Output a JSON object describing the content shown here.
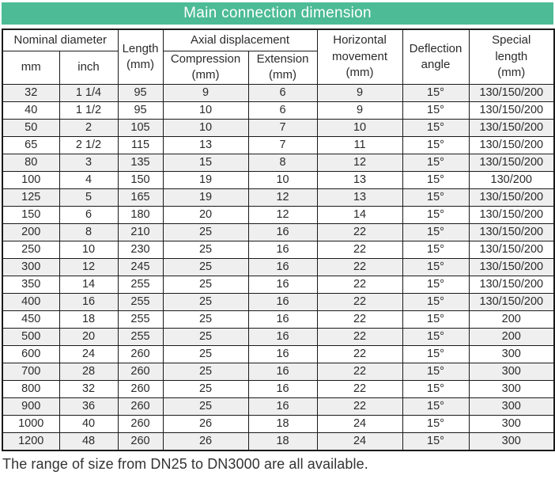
{
  "title": "Main connection dimension",
  "theme": {
    "title_bg_color": "#4cbb96",
    "title_text_color": "#ffffff",
    "row_alt_color": "#efefef",
    "border_color": "#1a1a1a"
  },
  "table": {
    "header": {
      "nominal_diameter": "Nominal diameter",
      "mm": "mm",
      "inch": "inch",
      "length": "Length\n(mm)",
      "axial_displacement": "Axial displacement",
      "compression": "Compression\n(mm)",
      "extension": "Extension\n(mm)",
      "horizontal_movement": "Horizontal\nmovement\n(mm)",
      "deflection_angle": "Deflection\nangle",
      "special_length": "Special\nlength\n(mm)"
    },
    "rows": [
      [
        "32",
        "1 1/4",
        "95",
        "9",
        "6",
        "9",
        "15°",
        "130/150/200"
      ],
      [
        "40",
        "1 1/2",
        "95",
        "10",
        "6",
        "9",
        "15°",
        "130/150/200"
      ],
      [
        "50",
        "2",
        "105",
        "10",
        "7",
        "10",
        "15°",
        "130/150/200"
      ],
      [
        "65",
        "2 1/2",
        "115",
        "13",
        "7",
        "11",
        "15°",
        "130/150/200"
      ],
      [
        "80",
        "3",
        "135",
        "15",
        "8",
        "12",
        "15°",
        "130/150/200"
      ],
      [
        "100",
        "4",
        "150",
        "19",
        "10",
        "13",
        "15°",
        "130/200"
      ],
      [
        "125",
        "5",
        "165",
        "19",
        "12",
        "13",
        "15°",
        "130/150/200"
      ],
      [
        "150",
        "6",
        "180",
        "20",
        "12",
        "14",
        "15°",
        "130/150/200"
      ],
      [
        "200",
        "8",
        "210",
        "25",
        "16",
        "22",
        "15°",
        "130/150/200"
      ],
      [
        "250",
        "10",
        "230",
        "25",
        "16",
        "22",
        "15°",
        "130/150/200"
      ],
      [
        "300",
        "12",
        "245",
        "25",
        "16",
        "22",
        "15°",
        "130/150/200"
      ],
      [
        "350",
        "14",
        "255",
        "25",
        "16",
        "22",
        "15°",
        "130/150/200"
      ],
      [
        "400",
        "16",
        "255",
        "25",
        "16",
        "22",
        "15°",
        "130/150/200"
      ],
      [
        "450",
        "18",
        "255",
        "25",
        "16",
        "22",
        "15°",
        "200"
      ],
      [
        "500",
        "20",
        "255",
        "25",
        "16",
        "22",
        "15°",
        "200"
      ],
      [
        "600",
        "24",
        "260",
        "25",
        "16",
        "22",
        "15°",
        "300"
      ],
      [
        "700",
        "28",
        "260",
        "25",
        "16",
        "22",
        "15°",
        "300"
      ],
      [
        "800",
        "32",
        "260",
        "25",
        "16",
        "22",
        "15°",
        "300"
      ],
      [
        "900",
        "36",
        "260",
        "25",
        "16",
        "22",
        "15°",
        "300"
      ],
      [
        "1000",
        "40",
        "260",
        "26",
        "18",
        "24",
        "15°",
        "300"
      ],
      [
        "1200",
        "48",
        "260",
        "26",
        "18",
        "24",
        "15°",
        "300"
      ]
    ]
  },
  "footer": "The range of size from DN25 to DN3000 are all available."
}
